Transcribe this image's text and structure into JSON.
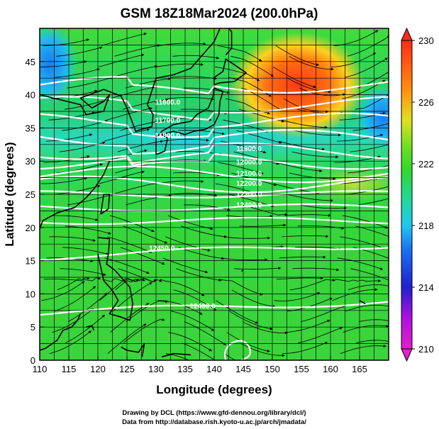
{
  "title": "GSM 18Z18Mar2024 (200.0hPa)",
  "xaxis": {
    "label": "Longitude (degrees)",
    "ticks": [
      "110",
      "115",
      "120",
      "125",
      "130",
      "135",
      "140",
      "145",
      "150",
      "155",
      "160",
      "165"
    ],
    "range": [
      110,
      170
    ]
  },
  "yaxis": {
    "label": "Latitude  (degrees)",
    "ticks": [
      "0",
      "5",
      "10",
      "15",
      "20",
      "25",
      "30",
      "35",
      "40",
      "45"
    ],
    "range": [
      0,
      50
    ]
  },
  "colorbar": {
    "ticks": [
      "210",
      "214",
      "218",
      "222",
      "226",
      "230"
    ],
    "range": [
      210,
      230
    ]
  },
  "contour_labels": [
    {
      "text": "11600.0",
      "lon": 132,
      "lat": 38.5
    },
    {
      "text": "11700.0",
      "lon": 132,
      "lat": 35.8
    },
    {
      "text": "11800.0",
      "lon": 132,
      "lat": 33.5
    },
    {
      "text": "11900.0",
      "lon": 146,
      "lat": 31.5
    },
    {
      "text": "12000.0",
      "lon": 146,
      "lat": 29.5
    },
    {
      "text": "12100.0",
      "lon": 146,
      "lat": 27.8
    },
    {
      "text": "12200.0",
      "lon": 146,
      "lat": 26.3
    },
    {
      "text": "12300.0",
      "lon": 146,
      "lat": 24.6
    },
    {
      "text": "12400.0",
      "lon": 146,
      "lat": 23.0
    },
    {
      "text": "12450.0",
      "lon": 131,
      "lat": 16.5
    },
    {
      "text": "12400.0",
      "lon": 138,
      "lat": 7.8
    }
  ],
  "credits": [
    "Drawing by DCL (https://www.gfd-dennou.org/library/dcl/)",
    "Data from http://database.rish.kyoto-u.ac.jp/arch/jmadata/"
  ]
}
